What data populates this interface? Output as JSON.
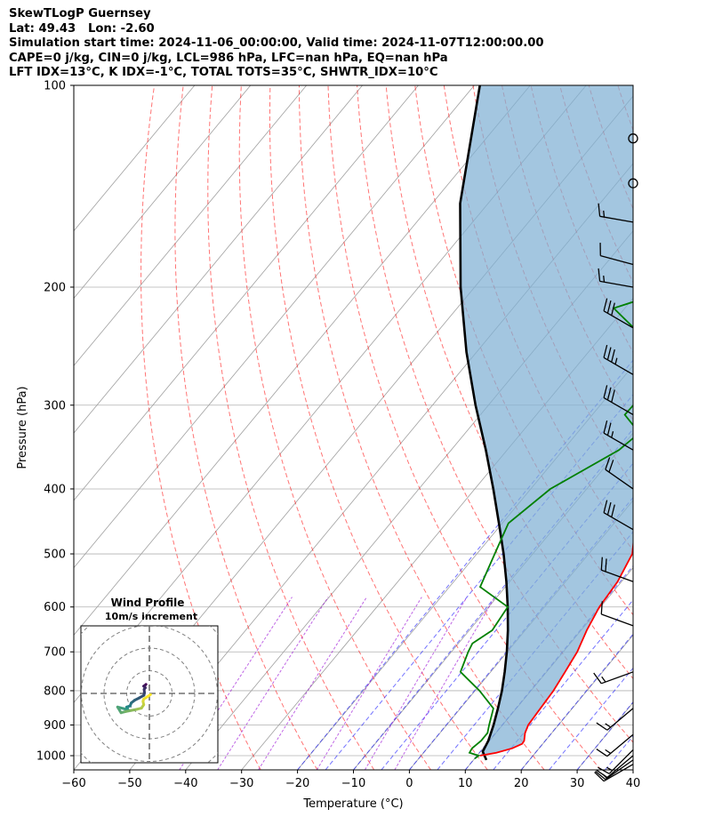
{
  "header": {
    "line1": "SkewTLogP Guernsey",
    "line2": "Lat: 49.43   Lon: -2.60",
    "line3": "Simulation start time: 2024-11-06_00:00:00, Valid time: 2024-11-07T12:00:00.00",
    "line4": "CAPE=0 j/kg, CIN=0 j/kg, LCL=986 hPa, LFC=nan hPa, EQ=nan hPa",
    "line5": "LFT IDX=13°C, K IDX=-1°C, TOTAL TOTS=35°C, SHWTR_IDX=10°C"
  },
  "chart_data": [
    {
      "type": "line",
      "subtype": "skew-t log-p diagram",
      "xlabel": "Temperature (°C)",
      "ylabel": "Pressure (hPa)",
      "xlim": [
        -60,
        40
      ],
      "ylim": [
        1050,
        100
      ],
      "y_scale": "log",
      "x_ticks": [
        "−60",
        "−50",
        "−40",
        "−30",
        "−20",
        "−10",
        "0",
        "10",
        "20",
        "30",
        "40"
      ],
      "y_ticks": [
        "100",
        "200",
        "300",
        "400",
        "500",
        "600",
        "700",
        "800",
        "900",
        "1000"
      ],
      "grid": true,
      "colors": {
        "temperature": "#ff0000",
        "dewpoint": "#008000",
        "parcel": "#000000",
        "fill": "#7fb0d4",
        "dry_adiabat": "#ff0000",
        "moist_adiabat": "#0000ff",
        "mixing_ratio": "#9400d3",
        "isotherm": "#a0a0a0"
      },
      "series": [
        {
          "key": "temperature",
          "points": [
            [
              1000,
              10.5
            ],
            [
              990,
              13.0
            ],
            [
              975,
              15.2
            ],
            [
              960,
              16.3
            ],
            [
              950,
              16.2
            ],
            [
              925,
              15.2
            ],
            [
              900,
              14.6
            ],
            [
              850,
              14.3
            ],
            [
              800,
              14.0
            ],
            [
              750,
              13.3
            ],
            [
              700,
              12.5
            ],
            [
              650,
              11.0
            ],
            [
              600,
              9.8
            ],
            [
              550,
              9.3
            ],
            [
              500,
              7.8
            ],
            [
              450,
              3.8
            ],
            [
              400,
              -1.0
            ],
            [
              350,
              -5.8
            ],
            [
              300,
              -10.3
            ],
            [
              270,
              -11.0
            ],
            [
              250,
              -12.5
            ],
            [
              220,
              -12.3
            ],
            [
              200,
              -8.7
            ],
            [
              185,
              -7.0
            ],
            [
              175,
              -5.8
            ],
            [
              160,
              -3.6
            ],
            [
              150,
              -1.0
            ],
            [
              140,
              -0.3
            ],
            [
              130,
              0.5
            ],
            [
              120,
              2.0
            ],
            [
              110,
              4.2
            ],
            [
              100,
              5.2
            ]
          ]
        },
        {
          "key": "dewpoint",
          "points": [
            [
              1010,
              10.0
            ],
            [
              1000,
              10.3
            ],
            [
              990,
              8.2
            ],
            [
              975,
              8.0
            ],
            [
              950,
              8.5
            ],
            [
              925,
              8.5
            ],
            [
              900,
              7.6
            ],
            [
              870,
              6.6
            ],
            [
              850,
              5.9
            ],
            [
              800,
              0.8
            ],
            [
              750,
              -5.4
            ],
            [
              700,
              -7.0
            ],
            [
              680,
              -7.5
            ],
            [
              650,
              -5.9
            ],
            [
              600,
              -6.6
            ],
            [
              560,
              -14.5
            ],
            [
              500,
              -16.8
            ],
            [
              450,
              -18.9
            ],
            [
              400,
              -16.5
            ],
            [
              350,
              -10.0
            ],
            [
              330,
              -8.9
            ],
            [
              310,
              -14.2
            ],
            [
              290,
              -14.0
            ],
            [
              270,
              -14.3
            ],
            [
              250,
              -21.5
            ],
            [
              230,
              -25.5
            ],
            [
              215,
              -32.0
            ],
            [
              200,
              -23.5
            ],
            [
              190,
              -20.0
            ],
            [
              175,
              -16.0
            ],
            [
              165,
              -15.5
            ],
            [
              150,
              -16.5
            ],
            [
              140,
              -17.5
            ],
            [
              130,
              -15.5
            ],
            [
              120,
              -12.5
            ],
            [
              110,
              -9.3
            ],
            [
              100,
              -6.5
            ]
          ]
        },
        {
          "key": "parcel",
          "points": [
            [
              1015,
              12.3
            ],
            [
              986,
              10.4
            ],
            [
              950,
              9.8
            ],
            [
              900,
              8.4
            ],
            [
              850,
              6.7
            ],
            [
              800,
              4.8
            ],
            [
              750,
              2.5
            ],
            [
              700,
              -0.1
            ],
            [
              650,
              -3.1
            ],
            [
              600,
              -6.6
            ],
            [
              550,
              -10.6
            ],
            [
              500,
              -15.2
            ],
            [
              450,
              -20.6
            ],
            [
              400,
              -26.7
            ],
            [
              350,
              -33.8
            ],
            [
              300,
              -42.3
            ],
            [
              250,
              -51.8
            ],
            [
              200,
              -62.5
            ],
            [
              150,
              -75.0
            ],
            [
              100,
              -89.0
            ]
          ]
        }
      ],
      "wind_barbs": [
        {
          "p": 120,
          "calm": true
        },
        {
          "p": 140,
          "calm": true
        },
        {
          "p": 160,
          "flags": 0,
          "full": 1,
          "half": 1,
          "dir_deg": 280
        },
        {
          "p": 185,
          "flags": 0,
          "full": 1,
          "half": 0,
          "dir_deg": 285
        },
        {
          "p": 200,
          "flags": 0,
          "full": 1,
          "half": 1,
          "dir_deg": 280
        },
        {
          "p": 230,
          "flags": 0,
          "full": 3,
          "half": 0,
          "dir_deg": 300
        },
        {
          "p": 270,
          "flags": 0,
          "full": 3,
          "half": 1,
          "dir_deg": 300
        },
        {
          "p": 310,
          "flags": 0,
          "full": 3,
          "half": 0,
          "dir_deg": 300
        },
        {
          "p": 350,
          "flags": 0,
          "full": 2,
          "half": 1,
          "dir_deg": 300
        },
        {
          "p": 400,
          "flags": 0,
          "full": 2,
          "half": 0,
          "dir_deg": 305
        },
        {
          "p": 460,
          "flags": 0,
          "full": 3,
          "half": 0,
          "dir_deg": 300
        },
        {
          "p": 550,
          "flags": 0,
          "full": 2,
          "half": 0,
          "dir_deg": 290
        },
        {
          "p": 640,
          "flags": 0,
          "full": 1,
          "half": 0,
          "dir_deg": 290
        },
        {
          "p": 750,
          "flags": 0,
          "full": 1,
          "half": 1,
          "dir_deg": 250
        },
        {
          "p": 850,
          "flags": 0,
          "full": 1,
          "half": 1,
          "dir_deg": 230
        },
        {
          "p": 930,
          "flags": 0,
          "full": 1,
          "half": 1,
          "dir_deg": 230
        },
        {
          "p": 980,
          "flags": 0,
          "full": 1,
          "half": 1,
          "dir_deg": 225
        },
        {
          "p": 1000,
          "flags": 0,
          "full": 1,
          "half": 0,
          "dir_deg": 230
        },
        {
          "p": 1015,
          "flags": 0,
          "full": 1,
          "half": 0,
          "dir_deg": 235
        },
        {
          "p": 1030,
          "flags": 0,
          "full": 1,
          "half": 1,
          "dir_deg": 240
        }
      ]
    },
    {
      "type": "line",
      "subtype": "hodograph",
      "title": "Wind Profile",
      "subtitle": "10m/s increment",
      "ring_step_ms": 10,
      "grid": true,
      "colors": {
        "path_start": "#440154",
        "path_mid": "#21918c",
        "path_end": "#fde725"
      },
      "points": [
        [
          -1.5,
          4.0
        ],
        [
          -2.0,
          3.5
        ],
        [
          -2.5,
          3.2
        ],
        [
          -1.8,
          2.5
        ],
        [
          -2.3,
          1.8
        ],
        [
          -2.2,
          0.5
        ],
        [
          -2.4,
          -0.8
        ],
        [
          -4.5,
          -2.0
        ],
        [
          -6.5,
          -3.0
        ],
        [
          -8.0,
          -4.2
        ],
        [
          -8.5,
          -5.5
        ],
        [
          -10.0,
          -6.0
        ],
        [
          -9.5,
          -7.0
        ],
        [
          -11.0,
          -6.8
        ],
        [
          -14.0,
          -6.0
        ],
        [
          -12.5,
          -8.5
        ],
        [
          -10.5,
          -8.0
        ],
        [
          -8.0,
          -7.5
        ],
        [
          -5.5,
          -7.0
        ],
        [
          -3.5,
          -6.5
        ],
        [
          -2.5,
          -5.0
        ],
        [
          -2.8,
          -3.5
        ],
        [
          -2.5,
          -2.5
        ],
        [
          -1.0,
          -1.5
        ],
        [
          0.5,
          -0.5
        ]
      ]
    }
  ]
}
